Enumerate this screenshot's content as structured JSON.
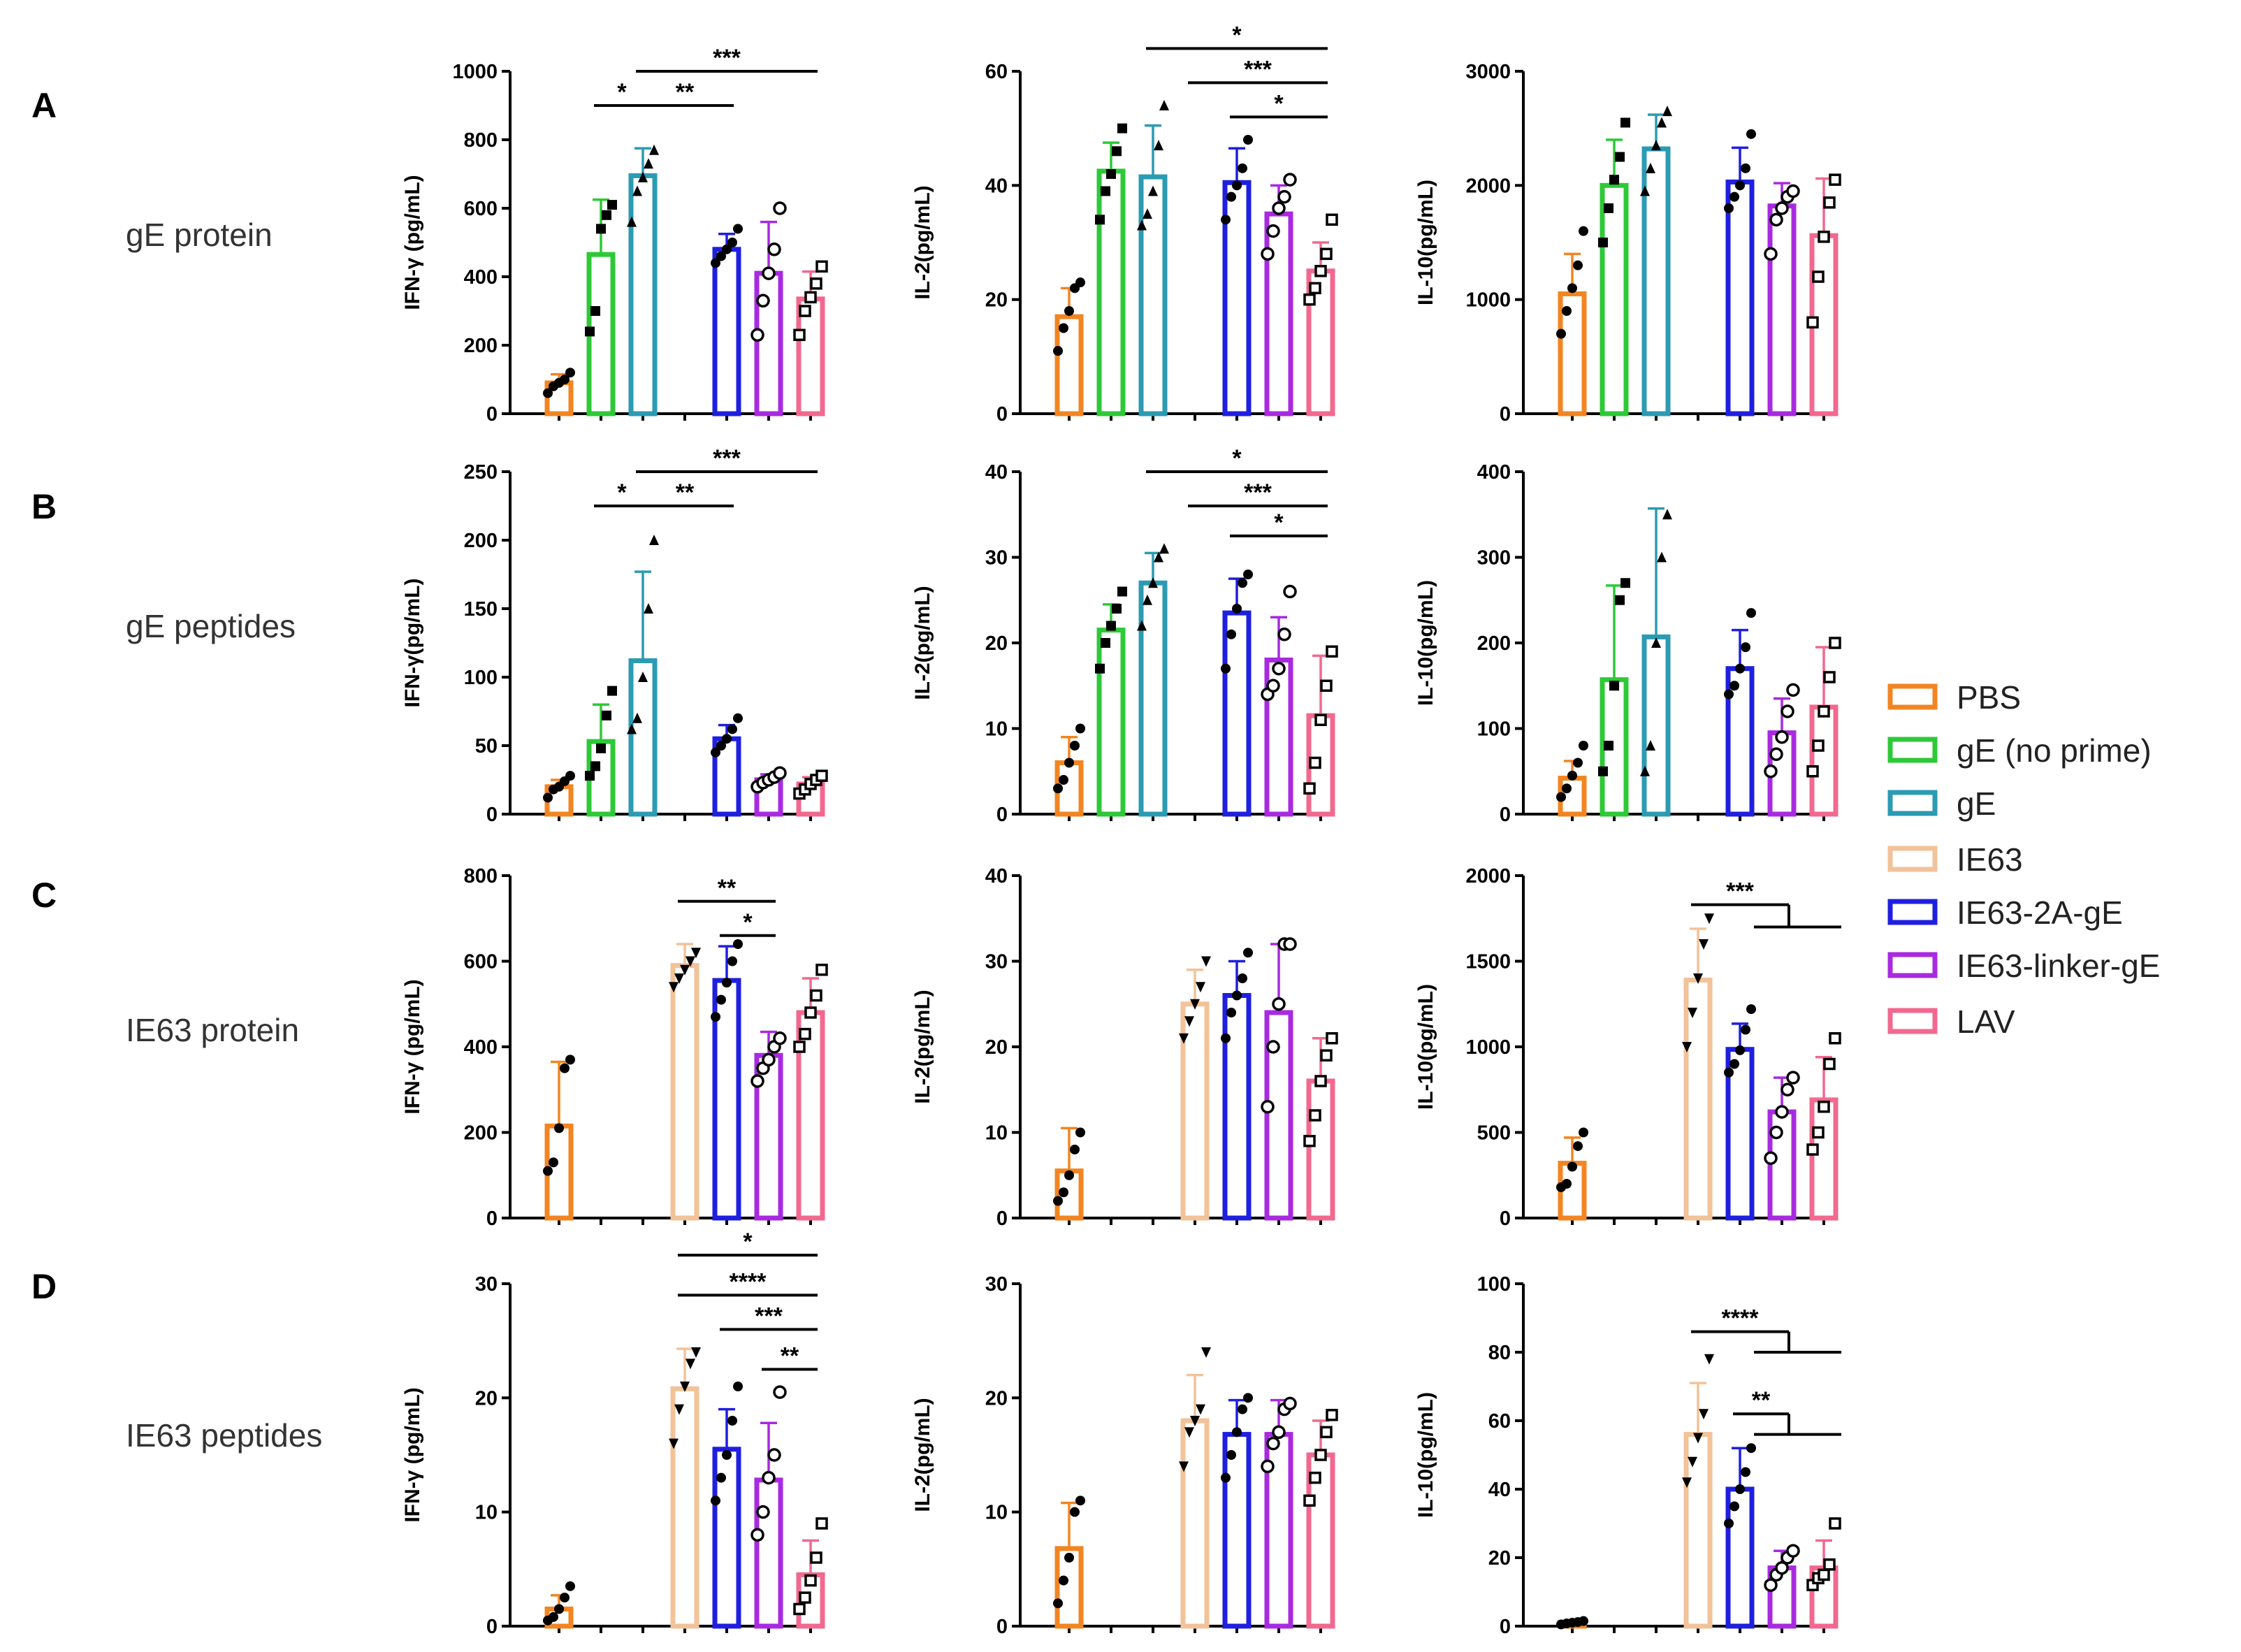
{
  "rows": [
    {
      "letter": "A",
      "label": "gE protein"
    },
    {
      "letter": "B",
      "label": "gE peptides"
    },
    {
      "letter": "C",
      "label": "IE63 protein"
    },
    {
      "letter": "D",
      "label": "IE63 peptides"
    }
  ],
  "groups": [
    {
      "name": "PBS",
      "color": "#F28522"
    },
    {
      "name": "gE (no prime)",
      "color": "#2DC937"
    },
    {
      "name": "gE",
      "color": "#2B9BB3"
    },
    {
      "name": "IE63",
      "color": "#F2C299"
    },
    {
      "name": "IE63-2A-gE",
      "color": "#1F1FE0"
    },
    {
      "name": "IE63-linker-gE",
      "color": "#A82AE0"
    },
    {
      "name": "LAV",
      "color": "#F2688F"
    }
  ],
  "chart_data": [
    {
      "type": "bar",
      "row": "A",
      "ylabel": "IFN-γ (pg/mL)",
      "ylim": [
        0,
        1000
      ],
      "yticks": [
        0,
        200,
        400,
        600,
        800,
        1000
      ],
      "bars": [
        {
          "group": 0,
          "mean": 90,
          "sd": 25
        },
        {
          "group": 1,
          "mean": 465,
          "sd": 160
        },
        {
          "group": 2,
          "mean": 695,
          "sd": 80
        },
        {
          "group": 4,
          "mean": 480,
          "sd": 45
        },
        {
          "group": 5,
          "mean": 410,
          "sd": 150
        },
        {
          "group": 6,
          "mean": 335,
          "sd": 80
        }
      ],
      "points": [
        [
          60,
          80,
          90,
          100,
          120
        ],
        [
          240,
          300,
          540,
          580,
          610
        ],
        [
          560,
          650,
          690,
          730,
          770
        ],
        [
          440,
          460,
          480,
          500,
          540
        ],
        [
          230,
          330,
          410,
          480,
          600
        ],
        [
          230,
          300,
          340,
          380,
          430
        ]
      ],
      "sig": [
        {
          "a": 1,
          "b": 2,
          "label": "*",
          "v": 900
        },
        {
          "a": 2,
          "b": 4,
          "label": "**",
          "v": 900
        },
        {
          "a": 2,
          "b": 6,
          "label": "***",
          "v": 1000
        }
      ]
    },
    {
      "type": "bar",
      "row": "A",
      "ylabel": "IL-2(pg/mL)",
      "ylim": [
        0,
        60
      ],
      "yticks": [
        0,
        20,
        40,
        60
      ],
      "bars": [
        {
          "group": 0,
          "mean": 17,
          "sd": 5
        },
        {
          "group": 1,
          "mean": 42.5,
          "sd": 5
        },
        {
          "group": 2,
          "mean": 41.5,
          "sd": 9
        },
        {
          "group": 4,
          "mean": 40.5,
          "sd": 6
        },
        {
          "group": 5,
          "mean": 35,
          "sd": 5
        },
        {
          "group": 6,
          "mean": 25,
          "sd": 5
        }
      ],
      "points": [
        [
          11,
          15,
          18,
          22,
          23
        ],
        [
          34,
          39,
          42,
          46,
          50
        ],
        [
          33,
          35,
          39,
          47,
          54
        ],
        [
          34,
          38,
          40,
          43,
          48
        ],
        [
          28,
          32,
          36,
          38,
          41
        ],
        [
          20,
          22,
          25,
          28,
          34
        ]
      ],
      "sig": [
        {
          "a": 2,
          "b": 6,
          "label": "*",
          "v": 64
        },
        {
          "a": 3,
          "b": 6,
          "label": "***",
          "v": 58
        },
        {
          "a": 4,
          "b": 6,
          "label": "*",
          "v": 52
        }
      ]
    },
    {
      "type": "bar",
      "row": "A",
      "ylabel": "IL-10(pg/mL)",
      "ylim": [
        0,
        3000
      ],
      "yticks": [
        0,
        1000,
        2000,
        3000
      ],
      "bars": [
        {
          "group": 0,
          "mean": 1050,
          "sd": 350
        },
        {
          "group": 1,
          "mean": 2000,
          "sd": 400
        },
        {
          "group": 2,
          "mean": 2320,
          "sd": 300
        },
        {
          "group": 4,
          "mean": 2030,
          "sd": 300
        },
        {
          "group": 5,
          "mean": 1820,
          "sd": 200
        },
        {
          "group": 6,
          "mean": 1560,
          "sd": 500
        }
      ],
      "points": [
        [
          700,
          900,
          1100,
          1300,
          1600
        ],
        [
          1500,
          1800,
          2050,
          2250,
          2550
        ],
        [
          1950,
          2150,
          2350,
          2550,
          2650
        ],
        [
          1800,
          1900,
          2000,
          2150,
          2450
        ],
        [
          1400,
          1700,
          1800,
          1900,
          1950
        ],
        [
          800,
          1200,
          1550,
          1850,
          2050
        ]
      ],
      "sig": []
    },
    {
      "type": "bar",
      "row": "B",
      "ylabel": "IFN-γ(pg/mL)",
      "ylim": [
        0,
        250
      ],
      "yticks": [
        0,
        50,
        100,
        150,
        200,
        250
      ],
      "bars": [
        {
          "group": 0,
          "mean": 20,
          "sd": 5
        },
        {
          "group": 1,
          "mean": 53,
          "sd": 27
        },
        {
          "group": 2,
          "mean": 112,
          "sd": 65
        },
        {
          "group": 4,
          "mean": 55,
          "sd": 10
        },
        {
          "group": 5,
          "mean": 25,
          "sd": 4
        },
        {
          "group": 6,
          "mean": 22,
          "sd": 5
        }
      ],
      "points": [
        [
          12,
          18,
          20,
          24,
          28
        ],
        [
          28,
          35,
          48,
          72,
          90
        ],
        [
          62,
          70,
          100,
          150,
          200
        ],
        [
          45,
          50,
          55,
          62,
          70
        ],
        [
          20,
          23,
          25,
          27,
          30
        ],
        [
          15,
          18,
          22,
          25,
          28
        ]
      ],
      "sig": [
        {
          "a": 1,
          "b": 2,
          "label": "*",
          "v": 225
        },
        {
          "a": 2,
          "b": 4,
          "label": "**",
          "v": 225
        },
        {
          "a": 2,
          "b": 6,
          "label": "***",
          "v": 250
        }
      ]
    },
    {
      "type": "bar",
      "row": "B",
      "ylabel": "IL-2(pg/mL)",
      "ylim": [
        0,
        40
      ],
      "yticks": [
        0,
        10,
        20,
        30,
        40
      ],
      "bars": [
        {
          "group": 0,
          "mean": 6,
          "sd": 3
        },
        {
          "group": 1,
          "mean": 21.5,
          "sd": 3
        },
        {
          "group": 2,
          "mean": 27,
          "sd": 3.5
        },
        {
          "group": 4,
          "mean": 23.5,
          "sd": 4
        },
        {
          "group": 5,
          "mean": 18,
          "sd": 5
        },
        {
          "group": 6,
          "mean": 11.5,
          "sd": 7
        }
      ],
      "points": [
        [
          3,
          4,
          6,
          8,
          10
        ],
        [
          17,
          20,
          22,
          24,
          26
        ],
        [
          22,
          25,
          27,
          30,
          31
        ],
        [
          17,
          21,
          24,
          27,
          28
        ],
        [
          14,
          15,
          17,
          21,
          26
        ],
        [
          3,
          6,
          11,
          15,
          19
        ]
      ],
      "sig": [
        {
          "a": 2,
          "b": 6,
          "label": "*",
          "v": 40
        },
        {
          "a": 3,
          "b": 6,
          "label": "***",
          "v": 36
        },
        {
          "a": 4,
          "b": 6,
          "label": "*",
          "v": 32.5
        }
      ]
    },
    {
      "type": "bar",
      "row": "B",
      "ylabel": "IL-10(pg/mL)",
      "ylim": [
        0,
        400
      ],
      "yticks": [
        0,
        100,
        200,
        300,
        400
      ],
      "bars": [
        {
          "group": 0,
          "mean": 42,
          "sd": 20
        },
        {
          "group": 1,
          "mean": 157,
          "sd": 110
        },
        {
          "group": 2,
          "mean": 207,
          "sd": 150
        },
        {
          "group": 4,
          "mean": 170,
          "sd": 45
        },
        {
          "group": 5,
          "mean": 95,
          "sd": 40
        },
        {
          "group": 6,
          "mean": 125,
          "sd": 70
        }
      ],
      "points": [
        [
          20,
          30,
          45,
          60,
          80
        ],
        [
          50,
          80,
          150,
          250,
          270
        ],
        [
          50,
          80,
          200,
          300,
          350
        ],
        [
          140,
          150,
          170,
          195,
          235
        ],
        [
          50,
          70,
          90,
          120,
          145
        ],
        [
          50,
          80,
          120,
          160,
          200
        ]
      ],
      "sig": []
    },
    {
      "type": "bar",
      "row": "C",
      "ylabel": "IFN-γ (pg/mL)",
      "ylim": [
        0,
        800
      ],
      "yticks": [
        0,
        200,
        400,
        600,
        800
      ],
      "bars": [
        {
          "group": 0,
          "mean": 215,
          "sd": 150
        },
        {
          "group": 3,
          "mean": 590,
          "sd": 50
        },
        {
          "group": 4,
          "mean": 555,
          "sd": 80
        },
        {
          "group": 5,
          "mean": 380,
          "sd": 55
        },
        {
          "group": 6,
          "mean": 480,
          "sd": 80
        }
      ],
      "points": [
        [
          110,
          130,
          210,
          350,
          370
        ],
        [
          540,
          560,
          580,
          600,
          620
        ],
        [
          470,
          510,
          550,
          600,
          640
        ],
        [
          320,
          350,
          370,
          400,
          420
        ],
        [
          400,
          430,
          480,
          520,
          580
        ]
      ],
      "sig": [
        {
          "a": 3,
          "b": 5,
          "label": "**",
          "v": 740
        },
        {
          "a": 4,
          "b": 5,
          "label": "*",
          "v": 660
        }
      ]
    },
    {
      "type": "bar",
      "row": "C",
      "ylabel": "IL-2(pg/mL)",
      "ylim": [
        0,
        40
      ],
      "yticks": [
        0,
        10,
        20,
        30,
        40
      ],
      "bars": [
        {
          "group": 0,
          "mean": 5.5,
          "sd": 5
        },
        {
          "group": 3,
          "mean": 25,
          "sd": 4
        },
        {
          "group": 4,
          "mean": 26,
          "sd": 4
        },
        {
          "group": 5,
          "mean": 24,
          "sd": 8
        },
        {
          "group": 6,
          "mean": 16,
          "sd": 5
        }
      ],
      "points": [
        [
          2,
          3,
          5,
          8,
          10
        ],
        [
          21,
          23,
          25,
          27,
          30
        ],
        [
          21,
          24,
          26,
          28,
          31
        ],
        [
          13,
          20,
          25,
          32,
          32
        ],
        [
          9,
          12,
          16,
          19,
          21
        ]
      ],
      "sig": []
    },
    {
      "type": "bar",
      "row": "C",
      "ylabel": "IL-10(pg/mL)",
      "ylim": [
        0,
        2000
      ],
      "yticks": [
        0,
        500,
        1000,
        1500,
        2000
      ],
      "bars": [
        {
          "group": 0,
          "mean": 320,
          "sd": 150
        },
        {
          "group": 3,
          "mean": 1390,
          "sd": 300
        },
        {
          "group": 4,
          "mean": 985,
          "sd": 150
        },
        {
          "group": 5,
          "mean": 620,
          "sd": 200
        },
        {
          "group": 6,
          "mean": 690,
          "sd": 250
        }
      ],
      "points": [
        [
          180,
          200,
          300,
          420,
          500
        ],
        [
          1000,
          1200,
          1400,
          1600,
          1750
        ],
        [
          850,
          900,
          980,
          1100,
          1220
        ],
        [
          350,
          500,
          620,
          750,
          820
        ],
        [
          400,
          500,
          650,
          900,
          1050
        ]
      ],
      "sig": [
        {
          "a": 3,
          "b": 5,
          "label": "***",
          "v": 1830,
          "fan": 6,
          "stub": 1700
        }
      ]
    },
    {
      "type": "bar",
      "row": "D",
      "ylabel": "IFN-γ (pg/mL)",
      "ylim": [
        0,
        30
      ],
      "yticks": [
        0,
        10,
        20,
        30
      ],
      "bars": [
        {
          "group": 0,
          "mean": 1.5,
          "sd": 1.2
        },
        {
          "group": 3,
          "mean": 20.8,
          "sd": 3.5
        },
        {
          "group": 4,
          "mean": 15.5,
          "sd": 3.5
        },
        {
          "group": 5,
          "mean": 12.8,
          "sd": 5
        },
        {
          "group": 6,
          "mean": 4.5,
          "sd": 3
        }
      ],
      "points": [
        [
          0.5,
          0.8,
          1.5,
          2.5,
          3.5
        ],
        [
          16,
          19,
          21,
          23,
          24
        ],
        [
          11,
          13,
          15,
          18,
          21
        ],
        [
          8,
          10,
          13,
          15,
          20.5
        ],
        [
          1.5,
          2.5,
          4,
          6,
          9
        ]
      ],
      "sig": [
        {
          "a": 3,
          "b": 6,
          "label": "*",
          "v": 32.5
        },
        {
          "a": 3,
          "b": 6,
          "label": "****",
          "v": 29
        },
        {
          "a": 4,
          "b": 6,
          "label": "***",
          "v": 26
        },
        {
          "a": 5,
          "b": 6,
          "label": "**",
          "v": 22.5
        }
      ]
    },
    {
      "type": "bar",
      "row": "D",
      "ylabel": "IL-2(pg/mL)",
      "ylim": [
        0,
        30
      ],
      "yticks": [
        0,
        10,
        20,
        30
      ],
      "bars": [
        {
          "group": 0,
          "mean": 6.8,
          "sd": 4
        },
        {
          "group": 3,
          "mean": 18,
          "sd": 4
        },
        {
          "group": 4,
          "mean": 16.8,
          "sd": 3
        },
        {
          "group": 5,
          "mean": 16.8,
          "sd": 3
        },
        {
          "group": 6,
          "mean": 15,
          "sd": 3
        }
      ],
      "points": [
        [
          2,
          4,
          6,
          10,
          11
        ],
        [
          14,
          17,
          18,
          19,
          24
        ],
        [
          13,
          15,
          17,
          19,
          20
        ],
        [
          14,
          16,
          17,
          19,
          19.5
        ],
        [
          11,
          13,
          15,
          17,
          18.5
        ]
      ],
      "sig": []
    },
    {
      "type": "bar",
      "row": "D",
      "ylabel": "IL-10(pg/mL)",
      "ylim": [
        0,
        100
      ],
      "yticks": [
        0,
        20,
        40,
        60,
        80,
        100
      ],
      "bars": [
        {
          "group": 0,
          "mean": 1,
          "sd": 0.5
        },
        {
          "group": 3,
          "mean": 56,
          "sd": 15
        },
        {
          "group": 4,
          "mean": 40,
          "sd": 12
        },
        {
          "group": 5,
          "mean": 17,
          "sd": 5
        },
        {
          "group": 6,
          "mean": 17,
          "sd": 8
        }
      ],
      "points": [
        [
          0.5,
          0.8,
          1,
          1.2,
          1.5
        ],
        [
          42,
          48,
          55,
          62,
          78
        ],
        [
          30,
          35,
          40,
          45,
          52
        ],
        [
          12,
          15,
          17,
          20,
          22
        ],
        [
          12,
          14,
          15,
          18,
          30
        ]
      ],
      "sig": [
        {
          "a": 3,
          "b": 5,
          "label": "****",
          "v": 86,
          "fan": 6,
          "stub": 80
        },
        {
          "a": 4,
          "b": 5,
          "label": "**",
          "v": 62,
          "fan": 6,
          "stub": 56
        }
      ]
    }
  ],
  "legend_title": ""
}
